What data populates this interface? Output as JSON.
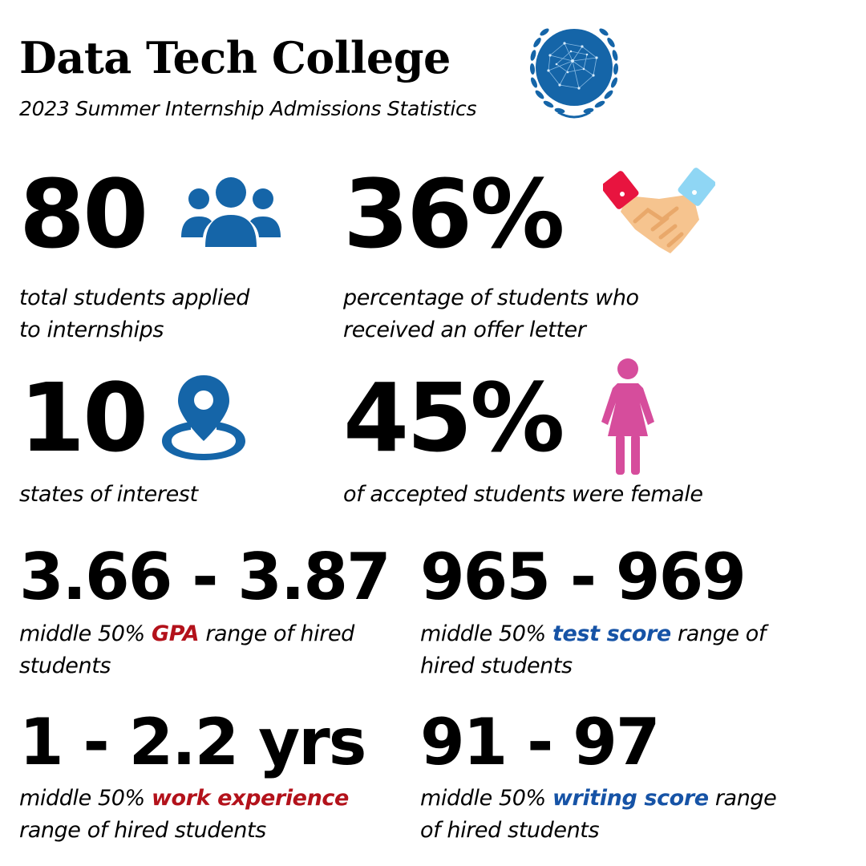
{
  "header": {
    "title": "Data Tech College",
    "subtitle": "2023 Summer Internship Admissions Statistics",
    "logo_icon": "college-seal-laurel-icon"
  },
  "stats": {
    "applicants": {
      "value": "80",
      "icon": "people-group-icon",
      "line1": "total students applied",
      "line2": "to internships"
    },
    "offers": {
      "value": "36%",
      "icon": "handshake-icon",
      "line1": "percentage of students who",
      "line2": "received an offer letter"
    },
    "states": {
      "value": "10",
      "icon": "location-pin-icon",
      "line1": "states of interest"
    },
    "female": {
      "value": "45%",
      "icon": "female-person-icon",
      "line1": "of accepted students were female"
    }
  },
  "ranges": {
    "gpa": {
      "value": "3.66 - 3.87",
      "before": "middle 50% ",
      "highlight": "GPA",
      "after": " range of hired",
      "line2": "students"
    },
    "test": {
      "value": "965 - 969",
      "before": "middle 50% ",
      "highlight": "test score",
      "after": " range of",
      "line2": "hired students"
    },
    "work": {
      "value": "1 - 2.2 yrs",
      "before": "middle 50% ",
      "highlight": "work experience",
      "after": "",
      "line2": "range of hired students"
    },
    "writing": {
      "value": "91 - 97",
      "before": "middle 50% ",
      "highlight": "writing score",
      "after": " range",
      "line2": "of hired students"
    }
  },
  "colors": {
    "accent_blue": "#1565a8",
    "highlight_red": "#b3121b",
    "highlight_blue": "#1653a6",
    "female_pink": "#d64d9c"
  }
}
